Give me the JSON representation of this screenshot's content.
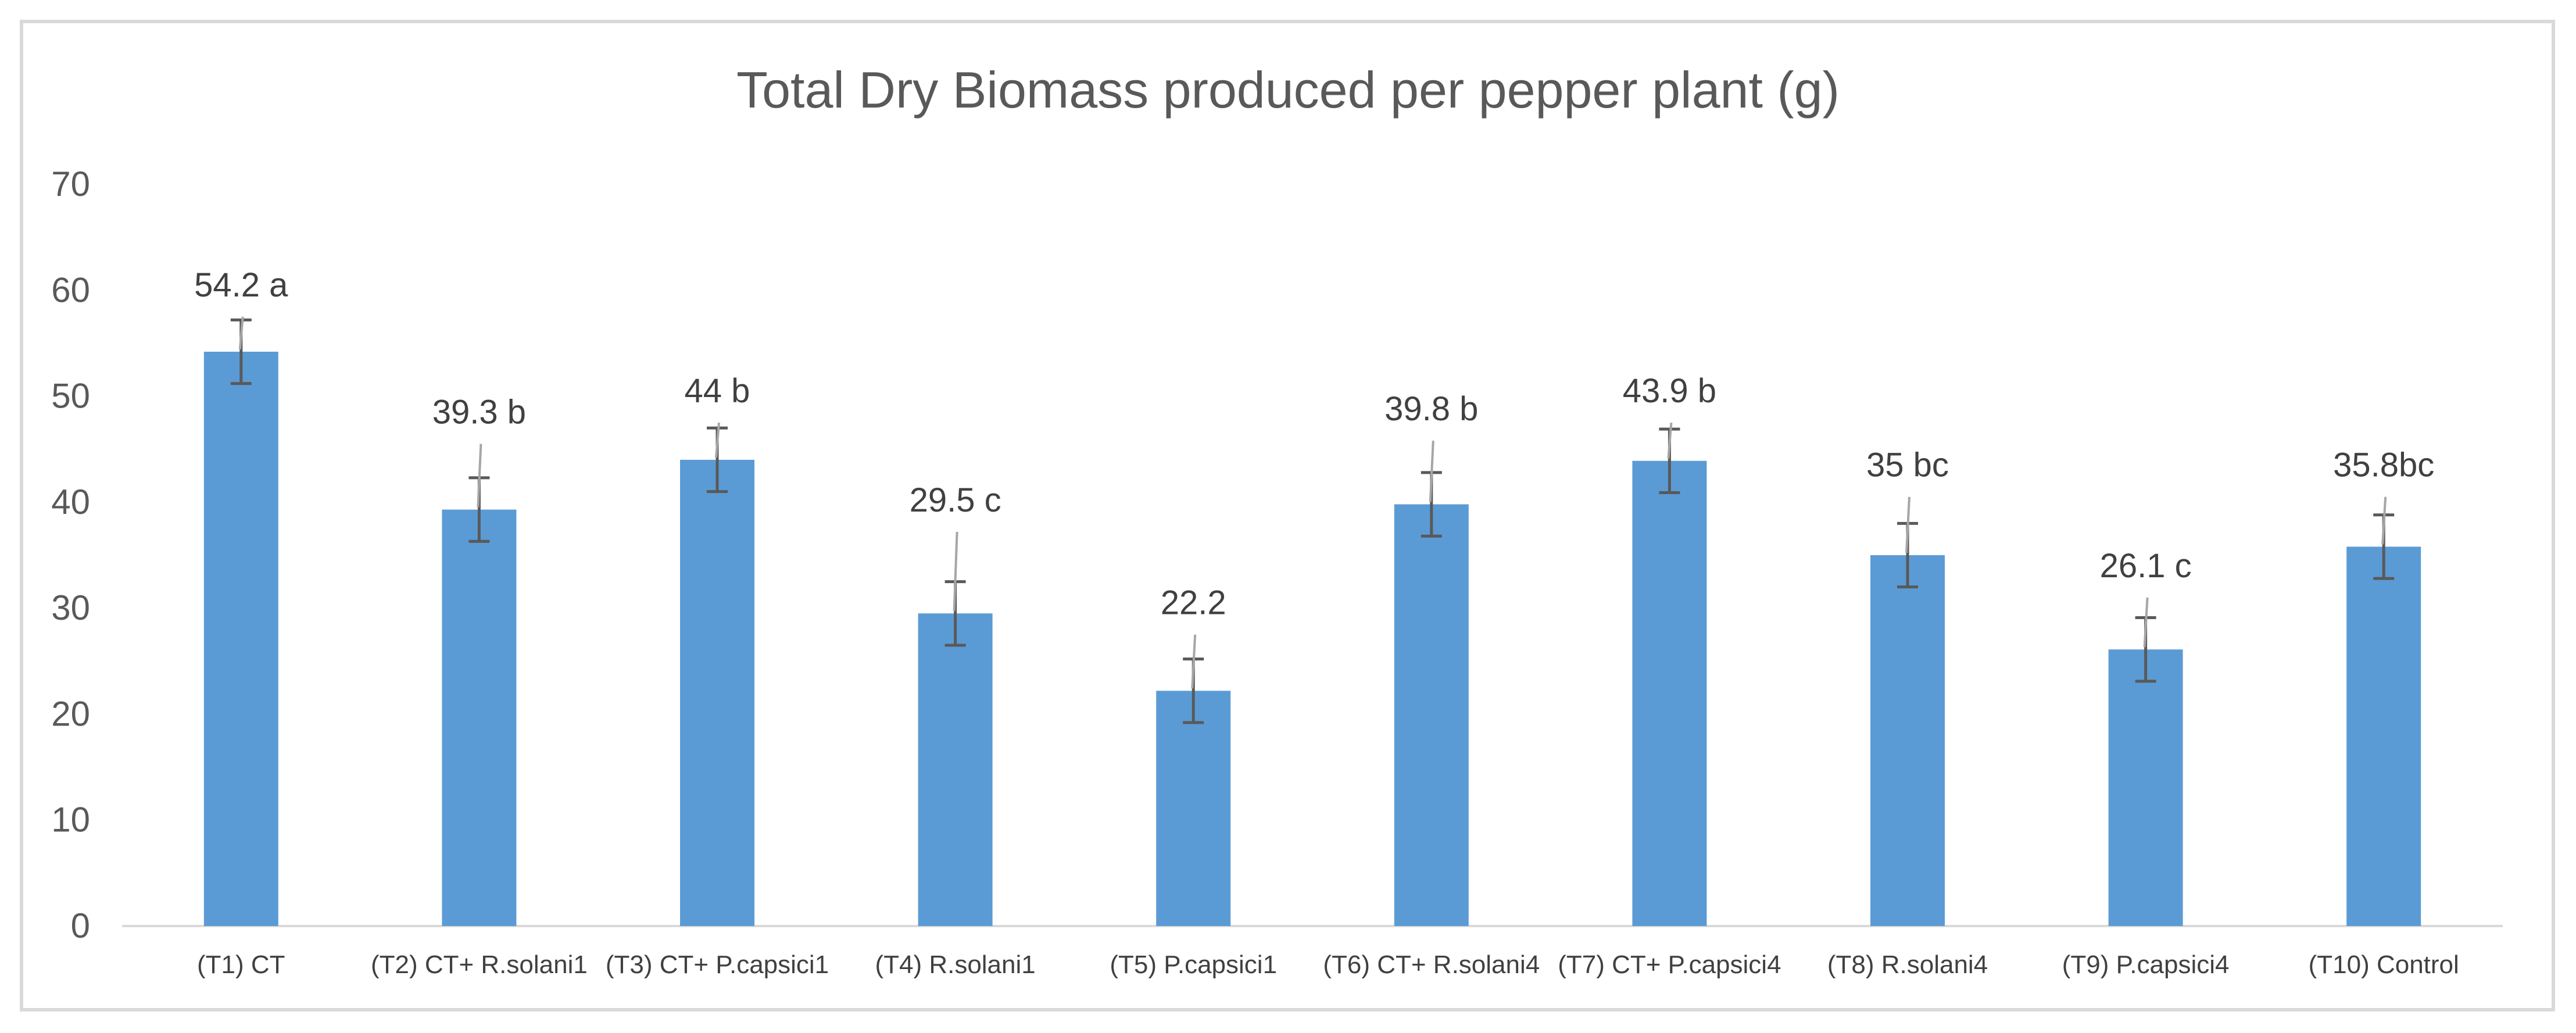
{
  "chart_data": {
    "type": "bar",
    "title": "Total Dry Biomass produced per pepper plant (g)",
    "xlabel": "",
    "ylabel": "",
    "ylim": [
      0,
      70
    ],
    "yticks": [
      0,
      10,
      20,
      30,
      40,
      50,
      60,
      70
    ],
    "grid": false,
    "legend": "none",
    "bar_color": "#5B9BD5",
    "categories": [
      "(T1) CT",
      "(T2) CT+ R.solani1",
      "(T3) CT+ P.capsici1",
      "(T4) R.solani1",
      "(T5) P.capsici1",
      "(T6) CT+ R.solani4",
      "(T7) CT+ P.capsici4",
      "(T8) R.solani4",
      "(T9) P.capsici4",
      "(T10) Control"
    ],
    "values": [
      54.2,
      39.3,
      44.0,
      29.5,
      22.2,
      39.8,
      43.9,
      35.0,
      26.1,
      35.8
    ],
    "error": [
      3.0,
      3.0,
      3.0,
      3.0,
      3.0,
      3.0,
      3.0,
      3.0,
      3.0,
      3.0
    ],
    "data_labels": [
      "54.2 a",
      "39.3 b",
      "44 b",
      "29.5 c",
      "22.2",
      "39.8 b",
      "43.9 b",
      "35 bc",
      "26.1 c",
      "35.8bc"
    ],
    "leader_line_tops": [
      57.5,
      45.5,
      47.5,
      37.2,
      27.5,
      45.8,
      47.5,
      40.5,
      31.0,
      40.5
    ]
  }
}
